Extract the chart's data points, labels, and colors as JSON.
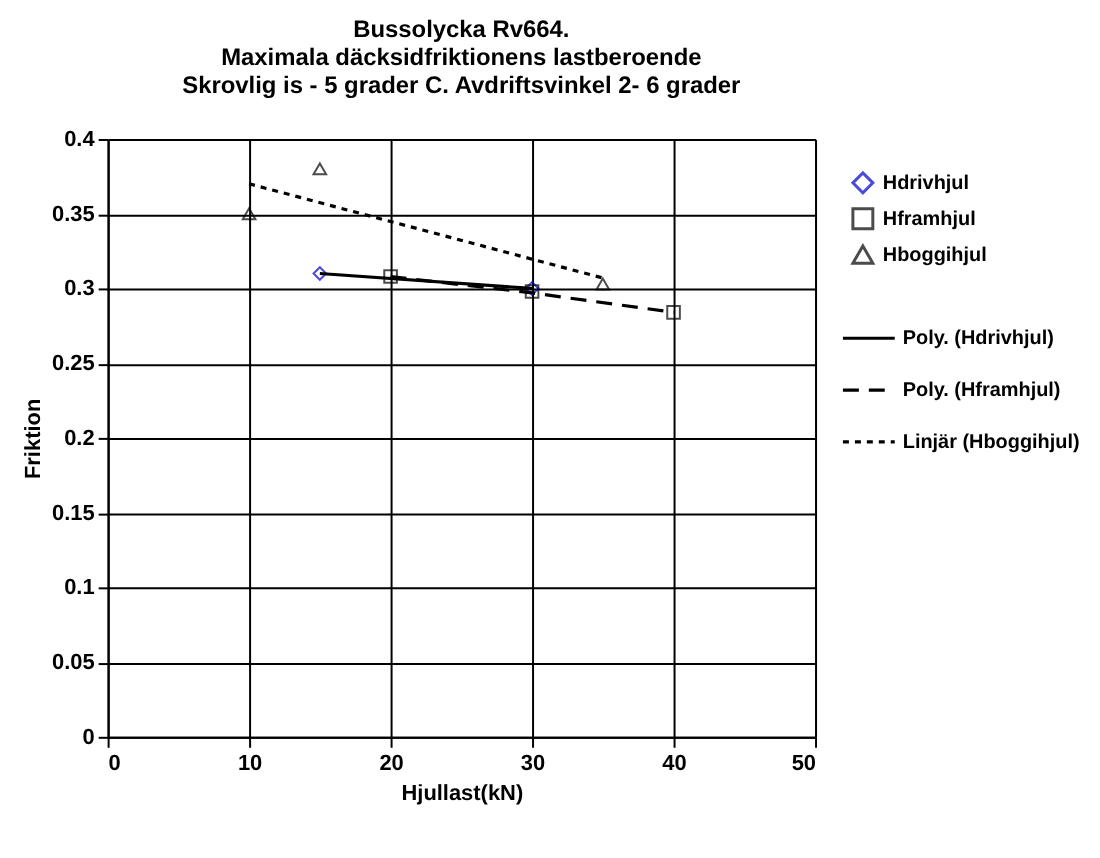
{
  "chart_data": {
    "type": "scatter",
    "title": [
      "Bussolycka Rv664.",
      "Maximala däcksidfriktionens lastberoende",
      "Skrovlig is - 5 grader C. Avdriftsvinkel 2- 6 grader"
    ],
    "xlabel": "Hjullast(kN)",
    "ylabel": "Friktion",
    "xlim": [
      0,
      50
    ],
    "xticks": [
      0,
      10,
      20,
      30,
      40,
      50
    ],
    "ylim": [
      0,
      0.4
    ],
    "yticks": [
      {
        "value": 0,
        "label": "0"
      },
      0.05,
      0.1,
      0.15,
      0.2,
      0.25,
      0.3,
      0.35,
      0.4
    ],
    "grid": true,
    "legend": "right",
    "series": [
      {
        "name": "Hdrivhjul",
        "marker": "diamond",
        "color": "#0000cc",
        "x": [
          15,
          30
        ],
        "values": [
          0.31,
          0.3
        ]
      },
      {
        "name": "Hframhjul",
        "marker": "square",
        "color": "#000000",
        "x": [
          20,
          30,
          40
        ],
        "values": [
          0.308,
          0.298,
          0.284
        ]
      },
      {
        "name": "Hboggihjul",
        "marker": "triangle",
        "color": "#000000",
        "x": [
          10,
          15,
          35
        ],
        "values": [
          0.35,
          0.38,
          0.303
        ]
      },
      {
        "name": "Poly. (Hdrivhjul)",
        "type": "line",
        "line_style": "solid",
        "color": "#000000",
        "x": [
          15,
          30
        ],
        "values": [
          0.31,
          0.3
        ]
      },
      {
        "name": "Poly. (Hframhjul)",
        "type": "line",
        "line_style": "dashed",
        "color": "#000000",
        "x": [
          20,
          30,
          40
        ],
        "values": [
          0.308,
          0.297,
          0.284
        ]
      },
      {
        "name": "Linjär (Hboggihjul)",
        "type": "line",
        "line_style": "dotted",
        "color": "#000000",
        "x": [
          10,
          35
        ],
        "values": [
          0.37,
          0.307
        ]
      }
    ]
  }
}
